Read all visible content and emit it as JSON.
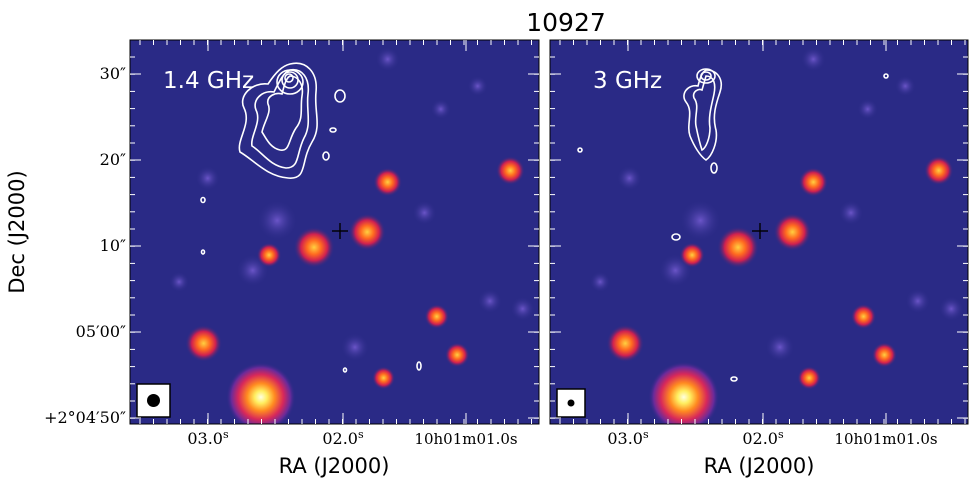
{
  "chart_data": {
    "type": "image",
    "title": "10927",
    "colors": {
      "background": "#2a2a86",
      "contour": "#ffffff",
      "marker": "#000000"
    },
    "panels": [
      {
        "label": "1.4 GHz",
        "beam": "circle"
      },
      {
        "label": "3 GHz",
        "beam": "small-circle"
      }
    ],
    "xlabel": "RA (J2000)",
    "ylabel": "Dec (J2000)",
    "xticks": [
      {
        "label": "03.0",
        "sup": "s"
      },
      {
        "label": "02.0",
        "sup": "s"
      },
      {
        "label": "10h01m01.0s",
        "sup": ""
      }
    ],
    "yticks": [
      "30″",
      "20″",
      "10″",
      "05′00″",
      "+2°04′50″"
    ],
    "sources": [
      {
        "name": "bright-star",
        "x": 0.32,
        "y": 0.93,
        "r": 0.085
      },
      {
        "name": "source-a",
        "x": 0.45,
        "y": 0.54,
        "r": 0.05
      },
      {
        "name": "source-b",
        "x": 0.58,
        "y": 0.5,
        "r": 0.045
      },
      {
        "name": "source-c",
        "x": 0.63,
        "y": 0.37,
        "r": 0.035
      },
      {
        "name": "source-d",
        "x": 0.93,
        "y": 0.34,
        "r": 0.035
      },
      {
        "name": "source-e",
        "x": 0.18,
        "y": 0.79,
        "r": 0.045
      },
      {
        "name": "source-f",
        "x": 0.75,
        "y": 0.72,
        "r": 0.03
      },
      {
        "name": "source-g",
        "x": 0.8,
        "y": 0.82,
        "r": 0.03
      },
      {
        "name": "source-h",
        "x": 0.62,
        "y": 0.88,
        "r": 0.028
      },
      {
        "name": "source-i",
        "x": 0.34,
        "y": 0.56,
        "r": 0.03
      }
    ]
  }
}
